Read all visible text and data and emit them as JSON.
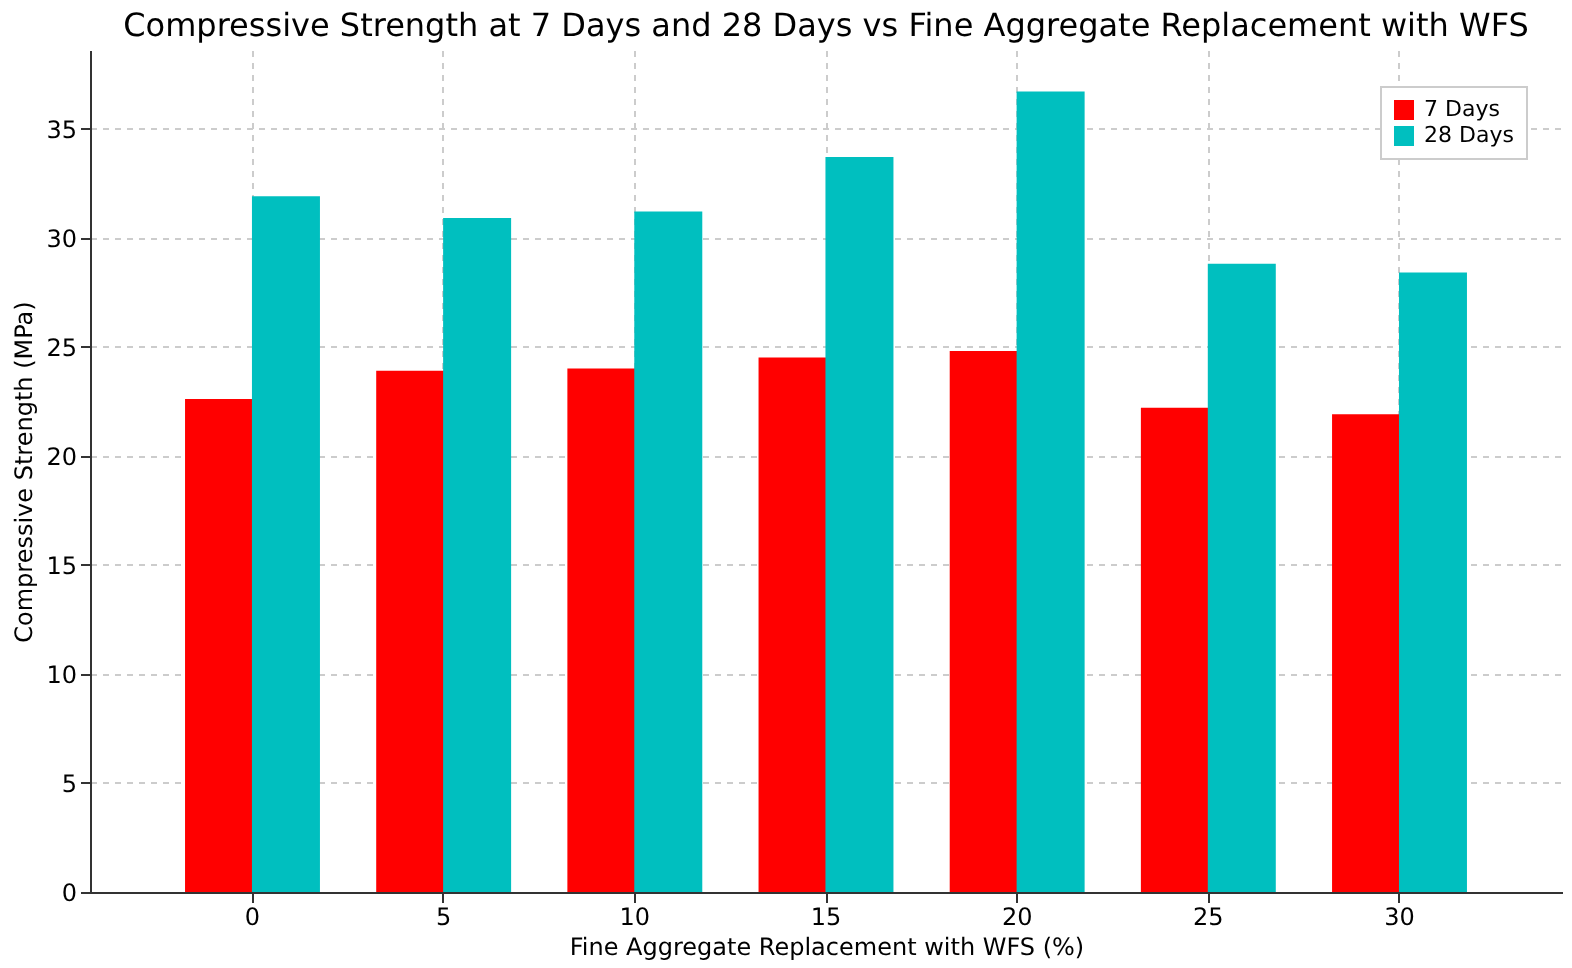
{
  "chart_data": {
    "type": "bar",
    "title": "Compressive Strength at 7 Days and 28 Days vs Fine Aggregate Replacement with WFS",
    "xlabel": "Fine Aggregate Replacement with WFS (%)",
    "ylabel": "Compressive Strength (MPa)",
    "categories": [
      "0",
      "5",
      "10",
      "15",
      "20",
      "25",
      "30"
    ],
    "series": [
      {
        "name": "7 Days",
        "color": "#ff0000",
        "values": [
          22.6,
          23.9,
          24.0,
          24.5,
          24.8,
          22.2,
          21.9
        ]
      },
      {
        "name": "28 Days",
        "color": "#00bfbf",
        "values": [
          31.9,
          30.9,
          31.2,
          33.7,
          36.7,
          28.8,
          28.4
        ]
      }
    ],
    "ylim": [
      0,
      38.6
    ],
    "yticks": [
      0,
      5,
      10,
      15,
      20,
      25,
      30,
      35
    ],
    "grid": true,
    "legend": "top right"
  }
}
